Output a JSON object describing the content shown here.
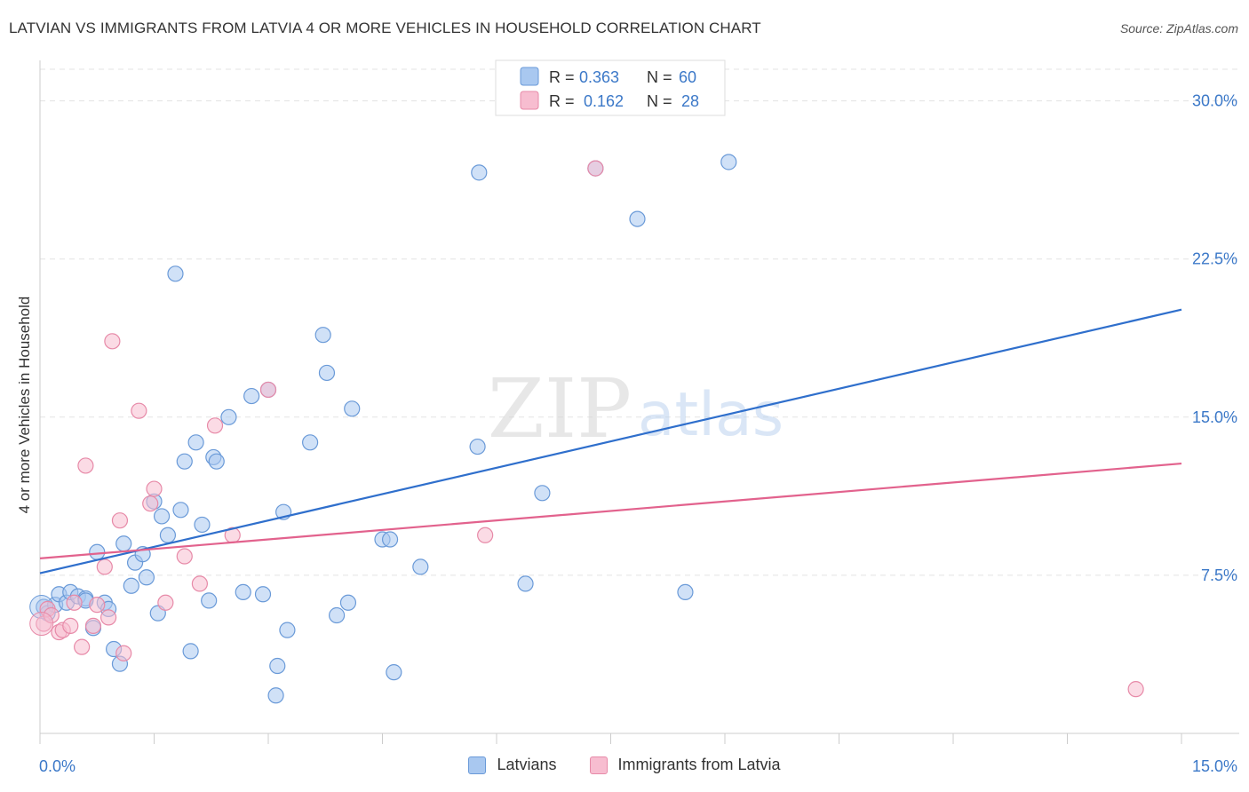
{
  "title": "LATVIAN VS IMMIGRANTS FROM LATVIA 4 OR MORE VEHICLES IN HOUSEHOLD CORRELATION CHART",
  "source": "Source: ZipAtlas.com",
  "watermark": {
    "zip": "ZIP",
    "atlas": "atlas"
  },
  "colors": {
    "blue_fill": "#a9c8f0",
    "blue_stroke": "#6a9ad8",
    "blue_line": "#2f6fcc",
    "pink_fill": "#f7bdd0",
    "pink_stroke": "#e78aa8",
    "pink_line": "#e2628d",
    "axis_text": "#3b78c8",
    "grid": "#e3e3e3"
  },
  "legend": [
    {
      "r_label": "R =",
      "r_value": "0.363",
      "n_label": "N =",
      "n_value": "60"
    },
    {
      "r_label": "R =",
      "r_value": "0.162",
      "n_label": "N =",
      "n_value": "28"
    }
  ],
  "chart_data": {
    "type": "scatter",
    "title": "LATVIAN VS IMMIGRANTS FROM LATVIA 4 OR MORE VEHICLES IN HOUSEHOLD CORRELATION CHART",
    "xlabel": "",
    "ylabel": "4 or more Vehicles in Household",
    "xlim": [
      0,
      15
    ],
    "ylim": [
      0,
      31.5
    ],
    "x_tick_labels": [
      "0.0%",
      "15.0%"
    ],
    "y_ticks": [
      7.5,
      15.0,
      22.5,
      30.0
    ],
    "y_tick_labels": [
      "7.5%",
      "15.0%",
      "22.5%",
      "30.0%"
    ],
    "grid": true,
    "legend_position": "top-center",
    "series": [
      {
        "name": "Latvians",
        "color": "#a9c8f0",
        "trend": {
          "x": [
            0,
            15
          ],
          "y": [
            7.6,
            20.1
          ]
        },
        "points": [
          [
            0.05,
            6.0
          ],
          [
            0.1,
            5.7
          ],
          [
            0.2,
            6.1
          ],
          [
            0.25,
            6.6
          ],
          [
            0.35,
            6.2
          ],
          [
            0.4,
            6.7
          ],
          [
            0.5,
            6.5
          ],
          [
            0.6,
            6.4
          ],
          [
            0.6,
            6.3
          ],
          [
            0.7,
            5.0
          ],
          [
            0.75,
            8.6
          ],
          [
            0.85,
            6.2
          ],
          [
            0.9,
            5.9
          ],
          [
            0.97,
            4.0
          ],
          [
            1.05,
            3.3
          ],
          [
            1.1,
            9.0
          ],
          [
            1.2,
            7.0
          ],
          [
            1.25,
            8.1
          ],
          [
            1.35,
            8.5
          ],
          [
            1.4,
            7.4
          ],
          [
            1.5,
            11.0
          ],
          [
            1.55,
            5.7
          ],
          [
            1.6,
            10.3
          ],
          [
            1.68,
            9.4
          ],
          [
            1.78,
            21.8
          ],
          [
            1.85,
            10.6
          ],
          [
            1.9,
            12.9
          ],
          [
            1.98,
            3.9
          ],
          [
            2.05,
            13.8
          ],
          [
            2.13,
            9.9
          ],
          [
            2.22,
            6.3
          ],
          [
            2.28,
            13.1
          ],
          [
            2.32,
            12.9
          ],
          [
            2.48,
            15.0
          ],
          [
            2.67,
            6.7
          ],
          [
            2.78,
            16.0
          ],
          [
            2.93,
            6.6
          ],
          [
            3.0,
            16.3
          ],
          [
            3.1,
            1.8
          ],
          [
            3.12,
            3.2
          ],
          [
            3.2,
            10.5
          ],
          [
            3.25,
            4.9
          ],
          [
            3.55,
            13.8
          ],
          [
            3.72,
            18.9
          ],
          [
            3.77,
            17.1
          ],
          [
            3.9,
            5.6
          ],
          [
            4.05,
            6.2
          ],
          [
            4.1,
            15.4
          ],
          [
            4.5,
            9.2
          ],
          [
            4.6,
            9.2
          ],
          [
            4.65,
            2.9
          ],
          [
            5.0,
            7.9
          ],
          [
            5.75,
            13.6
          ],
          [
            5.77,
            26.6
          ],
          [
            6.38,
            7.1
          ],
          [
            6.6,
            11.4
          ],
          [
            7.3,
            26.8
          ],
          [
            7.85,
            24.4
          ],
          [
            8.48,
            6.7
          ],
          [
            9.05,
            27.1
          ]
        ]
      },
      {
        "name": "Immigrants from Latvia",
        "color": "#f7bdd0",
        "trend": {
          "x": [
            0,
            15
          ],
          "y": [
            8.3,
            12.8
          ]
        },
        "points": [
          [
            0.05,
            5.2
          ],
          [
            0.1,
            5.9
          ],
          [
            0.15,
            5.6
          ],
          [
            0.25,
            4.8
          ],
          [
            0.3,
            4.9
          ],
          [
            0.4,
            5.1
          ],
          [
            0.45,
            6.2
          ],
          [
            0.55,
            4.1
          ],
          [
            0.6,
            12.7
          ],
          [
            0.7,
            5.1
          ],
          [
            0.75,
            6.1
          ],
          [
            0.85,
            7.9
          ],
          [
            0.9,
            5.5
          ],
          [
            0.95,
            18.6
          ],
          [
            1.05,
            10.1
          ],
          [
            1.1,
            3.8
          ],
          [
            1.3,
            15.3
          ],
          [
            1.45,
            10.9
          ],
          [
            1.5,
            11.6
          ],
          [
            1.65,
            6.2
          ],
          [
            1.9,
            8.4
          ],
          [
            2.1,
            7.1
          ],
          [
            2.3,
            14.6
          ],
          [
            2.53,
            9.4
          ],
          [
            3.0,
            16.3
          ],
          [
            5.85,
            9.4
          ],
          [
            7.3,
            26.8
          ],
          [
            14.4,
            2.1
          ]
        ]
      }
    ]
  },
  "x_axis": {
    "min_label": "0.0%",
    "max_label": "15.0%"
  }
}
